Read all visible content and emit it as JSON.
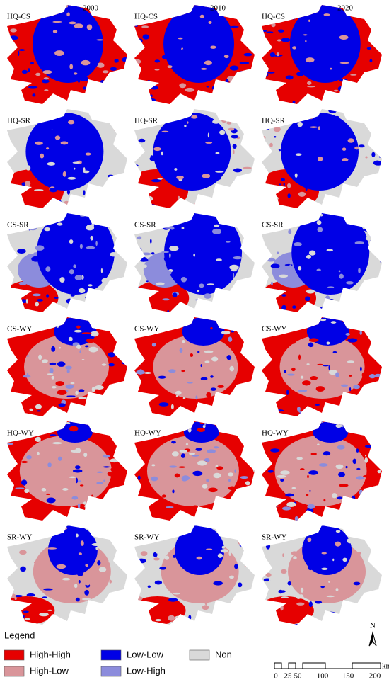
{
  "columns": [
    "2000",
    "2010",
    "2020"
  ],
  "rows": [
    "HQ-CS",
    "HQ-SR",
    "CS-SR",
    "CS-WY",
    "HQ-WY",
    "SR-WY"
  ],
  "legend": {
    "title": "Legend",
    "items": [
      {
        "label": "High-High",
        "color": "#e60000"
      },
      {
        "label": "High-Low",
        "color": "#d9959a"
      },
      {
        "label": "Low-Low",
        "color": "#0000e6"
      },
      {
        "label": "Low-High",
        "color": "#8c8cdc"
      },
      {
        "label": "Non",
        "color": "#d9d9d9"
      }
    ]
  },
  "north_arrow": "N",
  "scale_bar": {
    "ticks": [
      "0",
      "25",
      "50",
      "100",
      "150",
      "200"
    ],
    "unit": "km"
  }
}
